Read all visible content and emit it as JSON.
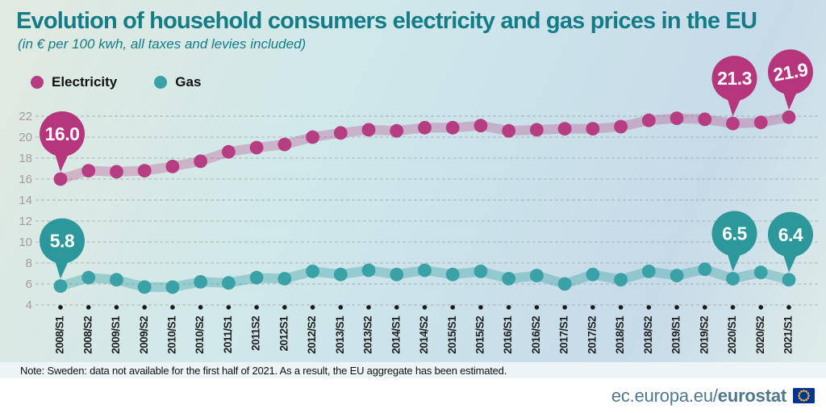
{
  "header": {
    "title": "Evolution of household consumers electricity and gas prices in the EU",
    "subtitle": "(in € per 100 kwh, all taxes and levies included)"
  },
  "legend": [
    {
      "label": "Electricity",
      "color": "#b63d82"
    },
    {
      "label": "Gas",
      "color": "#3aa1a6"
    }
  ],
  "chart_data": {
    "type": "line",
    "title": "Evolution of household consumers electricity and gas prices in the EU",
    "xlabel": "",
    "ylabel": "€ per 100 kwh",
    "x": [
      "2008/S1",
      "2008/S2",
      "2009/S1",
      "2009/S2",
      "2010/S1",
      "2010/S2",
      "2011/S1",
      "2011S2",
      "2012S1",
      "2012/S2",
      "2013/S1",
      "2013/S2",
      "2014/S1",
      "2014/S2",
      "2015/S1",
      "2015/S2",
      "2016/S1",
      "2016/S2",
      "2017/S1",
      "2017/S2",
      "2018/S1",
      "2018/S2",
      "2019/S1",
      "2019/S2",
      "2020/S1",
      "2020/S2",
      "2021/S1"
    ],
    "series": [
      {
        "name": "Electricity",
        "color": "#b63d82",
        "ribbon_color": "rgba(182,61,130,0.30)",
        "bubble_color": "#b5367d",
        "values": [
          16.0,
          16.8,
          16.7,
          16.8,
          17.2,
          17.7,
          18.6,
          19.0,
          19.3,
          20.0,
          20.4,
          20.7,
          20.6,
          20.9,
          20.9,
          21.1,
          20.6,
          20.7,
          20.8,
          20.8,
          21.0,
          21.6,
          21.8,
          21.7,
          21.3,
          21.4,
          21.9
        ]
      },
      {
        "name": "Gas",
        "color": "#3aa1a6",
        "ribbon_color": "rgba(58,161,166,0.38)",
        "bubble_color": "#2d989c",
        "values": [
          5.8,
          6.6,
          6.4,
          5.7,
          5.7,
          6.2,
          6.1,
          6.6,
          6.5,
          7.2,
          6.9,
          7.3,
          6.9,
          7.3,
          6.9,
          7.2,
          6.5,
          6.8,
          6.0,
          6.9,
          6.4,
          7.2,
          6.8,
          7.4,
          6.5,
          7.1,
          6.4
        ]
      }
    ],
    "ylim": [
      4,
      22
    ],
    "yticks": [
      4,
      6,
      8,
      10,
      12,
      14,
      16,
      18,
      20,
      22
    ],
    "grid": "horizontal dashed",
    "legend_position": "top-left",
    "callouts": [
      {
        "series": "Electricity",
        "x": "2008/S1",
        "label": "16.0"
      },
      {
        "series": "Electricity",
        "x": "2020/S1",
        "label": "21.3"
      },
      {
        "series": "Electricity",
        "x": "2021/S1",
        "label": "21.9"
      },
      {
        "series": "Gas",
        "x": "2008/S1",
        "label": "5.8"
      },
      {
        "series": "Gas",
        "x": "2020/S1",
        "label": "6.5"
      },
      {
        "series": "Gas",
        "x": "2021/S1",
        "label": "6.4"
      }
    ]
  },
  "note": "Note: Sweden: data not available for the first half of 2021. As a result, the EU aggregate has been estimated.",
  "footer": {
    "url_prefix": "ec.europa.eu/",
    "url_bold": "eurostat"
  },
  "colors": {
    "brand_teal": "#137c86",
    "axis_label": "#a69aa0",
    "grid_line": "#8b9898",
    "tick_dot": "#1a1a1a",
    "x_label": "#1f1f1f",
    "note_bg": "#edf4f6",
    "footer_text": "#50788c",
    "flag_blue": "#003399",
    "flag_yellow": "#ffcc00"
  }
}
